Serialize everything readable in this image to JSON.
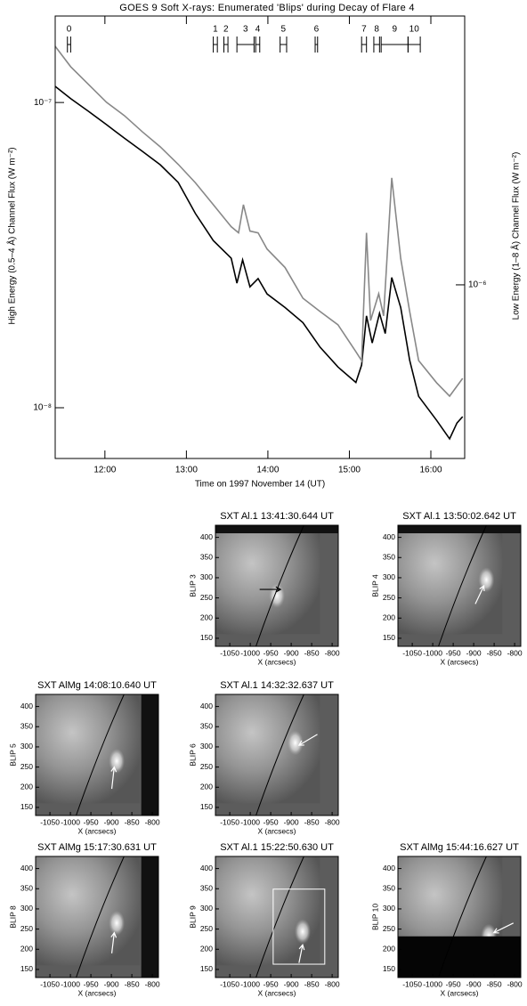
{
  "chart_data": {
    "type": "line",
    "title": "GOES 9 Soft X-rays: Enumerated 'Blips' during Decay of Flare 4",
    "x_label": "Time on 1997 November 14 (UT)",
    "y_label": "High Energy (0.5–4 Å) Channel Flux (W m⁻²)",
    "y2_label": "Low Energy (1–8 Å) Channel Flux (W m⁻²)",
    "ylog": true,
    "xlim": [
      11.39,
      16.415
    ],
    "xticks": [
      {
        "value": 12,
        "label": "12:00"
      },
      {
        "value": 13,
        "label": "13:00"
      },
      {
        "value": 14,
        "label": "14:00"
      },
      {
        "value": 15,
        "label": "15:00"
      },
      {
        "value": 16,
        "label": "16:00"
      }
    ],
    "ylim": [
      6.82e-09,
      1.92e-07
    ],
    "yticks": [
      {
        "value": 1e-08,
        "label": "10⁻⁸"
      },
      {
        "value": 1e-07,
        "label": "10⁻⁷"
      }
    ],
    "y2lim": [
      2.7e-07,
      7.59e-06
    ],
    "y2ticks": [
      {
        "value": 1e-06,
        "label": "10⁻⁶"
      }
    ],
    "series": [
      {
        "name": "High Energy (0.5–4 Å)",
        "color": "#000000",
        "x": [
          11.39,
          11.58,
          11.8,
          12.02,
          12.24,
          12.46,
          12.68,
          12.9,
          13.11,
          13.33,
          13.55,
          13.62,
          13.69,
          13.78,
          13.88,
          13.99,
          14.21,
          14.43,
          14.64,
          14.86,
          15.08,
          15.15,
          15.21,
          15.28,
          15.37,
          15.44,
          15.52,
          15.63,
          15.74,
          15.85,
          16.07,
          16.23,
          16.32,
          16.39
        ],
        "values": [
          1.13e-07,
          1.03e-07,
          9.35e-08,
          8.46e-08,
          7.64e-08,
          6.92e-08,
          6.25e-08,
          5.47e-08,
          4.33e-08,
          3.53e-08,
          3.09e-08,
          2.56e-08,
          3.05e-08,
          2.49e-08,
          2.65e-08,
          2.36e-08,
          2.13e-08,
          1.9e-08,
          1.58e-08,
          1.36e-08,
          1.21e-08,
          1.38e-08,
          2e-08,
          1.63e-08,
          2.04e-08,
          1.75e-08,
          2.67e-08,
          2.13e-08,
          1.43e-08,
          1.09e-08,
          9.1e-09,
          7.91e-09,
          8.91e-09,
          9.35e-09
        ]
      },
      {
        "name": "Low Energy (1–8 Å)",
        "color": "#888888",
        "axis": "y2",
        "x": [
          11.39,
          11.58,
          11.8,
          12.02,
          12.24,
          12.46,
          12.68,
          12.9,
          13.11,
          13.33,
          13.55,
          13.64,
          13.7,
          13.78,
          13.88,
          13.99,
          14.21,
          14.43,
          14.64,
          14.86,
          15.08,
          15.15,
          15.21,
          15.26,
          15.36,
          15.42,
          15.52,
          15.63,
          15.74,
          15.85,
          16.07,
          16.23,
          16.39
        ],
        "values": [
          6.04e-06,
          5.18e-06,
          4.53e-06,
          3.96e-06,
          3.58e-06,
          3.17e-06,
          2.83e-06,
          2.48e-06,
          2.16e-06,
          1.83e-06,
          1.55e-06,
          1.48e-06,
          1.83e-06,
          1.5e-06,
          1.48e-06,
          1.31e-06,
          1.14e-06,
          9.04e-07,
          8.18e-07,
          7.4e-07,
          6.04e-07,
          5.65e-07,
          1.48e-06,
          7.64e-07,
          9.35e-07,
          7.91e-07,
          2.24e-06,
          1.22e-06,
          8.18e-07,
          5.65e-07,
          4.78e-07,
          4.32e-07,
          4.94e-07
        ]
      }
    ],
    "blips": [
      {
        "label": "0",
        "start": 11.54,
        "end": 11.58
      },
      {
        "label": "1",
        "start": 13.33,
        "end": 13.38
      },
      {
        "label": "2",
        "start": 13.46,
        "end": 13.51
      },
      {
        "label": "3",
        "start": 13.62,
        "end": 13.83
      },
      {
        "label": "4",
        "start": 13.85,
        "end": 13.9
      },
      {
        "label": "5",
        "start": 14.15,
        "end": 14.23
      },
      {
        "label": "6",
        "start": 14.58,
        "end": 14.61
      },
      {
        "label": "7",
        "start": 15.15,
        "end": 15.21
      },
      {
        "label": "8",
        "start": 15.3,
        "end": 15.37
      },
      {
        "label": "9",
        "start": 15.39,
        "end": 15.72
      },
      {
        "label": "10",
        "start": 15.72,
        "end": 15.87
      }
    ]
  },
  "panel_axes": {
    "x_label": "X (arcsecs)",
    "xlim": [
      -1085,
      -785
    ],
    "xticks": [
      -1050,
      -1000,
      -950,
      -900,
      -850,
      -800
    ],
    "ylim": [
      130,
      430
    ],
    "yticks": [
      150,
      200,
      250,
      300,
      350,
      400
    ]
  },
  "panels": [
    {
      "title": "SXT Al.1 13:41:30.644 UT",
      "y_label": "BLIP 3"
    },
    {
      "title": "SXT Al.1 13:50:02.642 UT",
      "y_label": "BLIP 4"
    },
    {
      "title": "SXT AlMg 14:08:10.640 UT",
      "y_label": "BLIP 5"
    },
    {
      "title": "SXT Al.1 14:32:32.637 UT",
      "y_label": "BLIP 6"
    },
    {
      "title": "SXT AlMg 15:17:30.631 UT",
      "y_label": "BLIP 8"
    },
    {
      "title": "SXT Al.1 15:22:50.630 UT",
      "y_label": "BLIP 9"
    },
    {
      "title": "SXT AlMg 15:44:16.627 UT",
      "y_label": "BLIP 10"
    }
  ]
}
